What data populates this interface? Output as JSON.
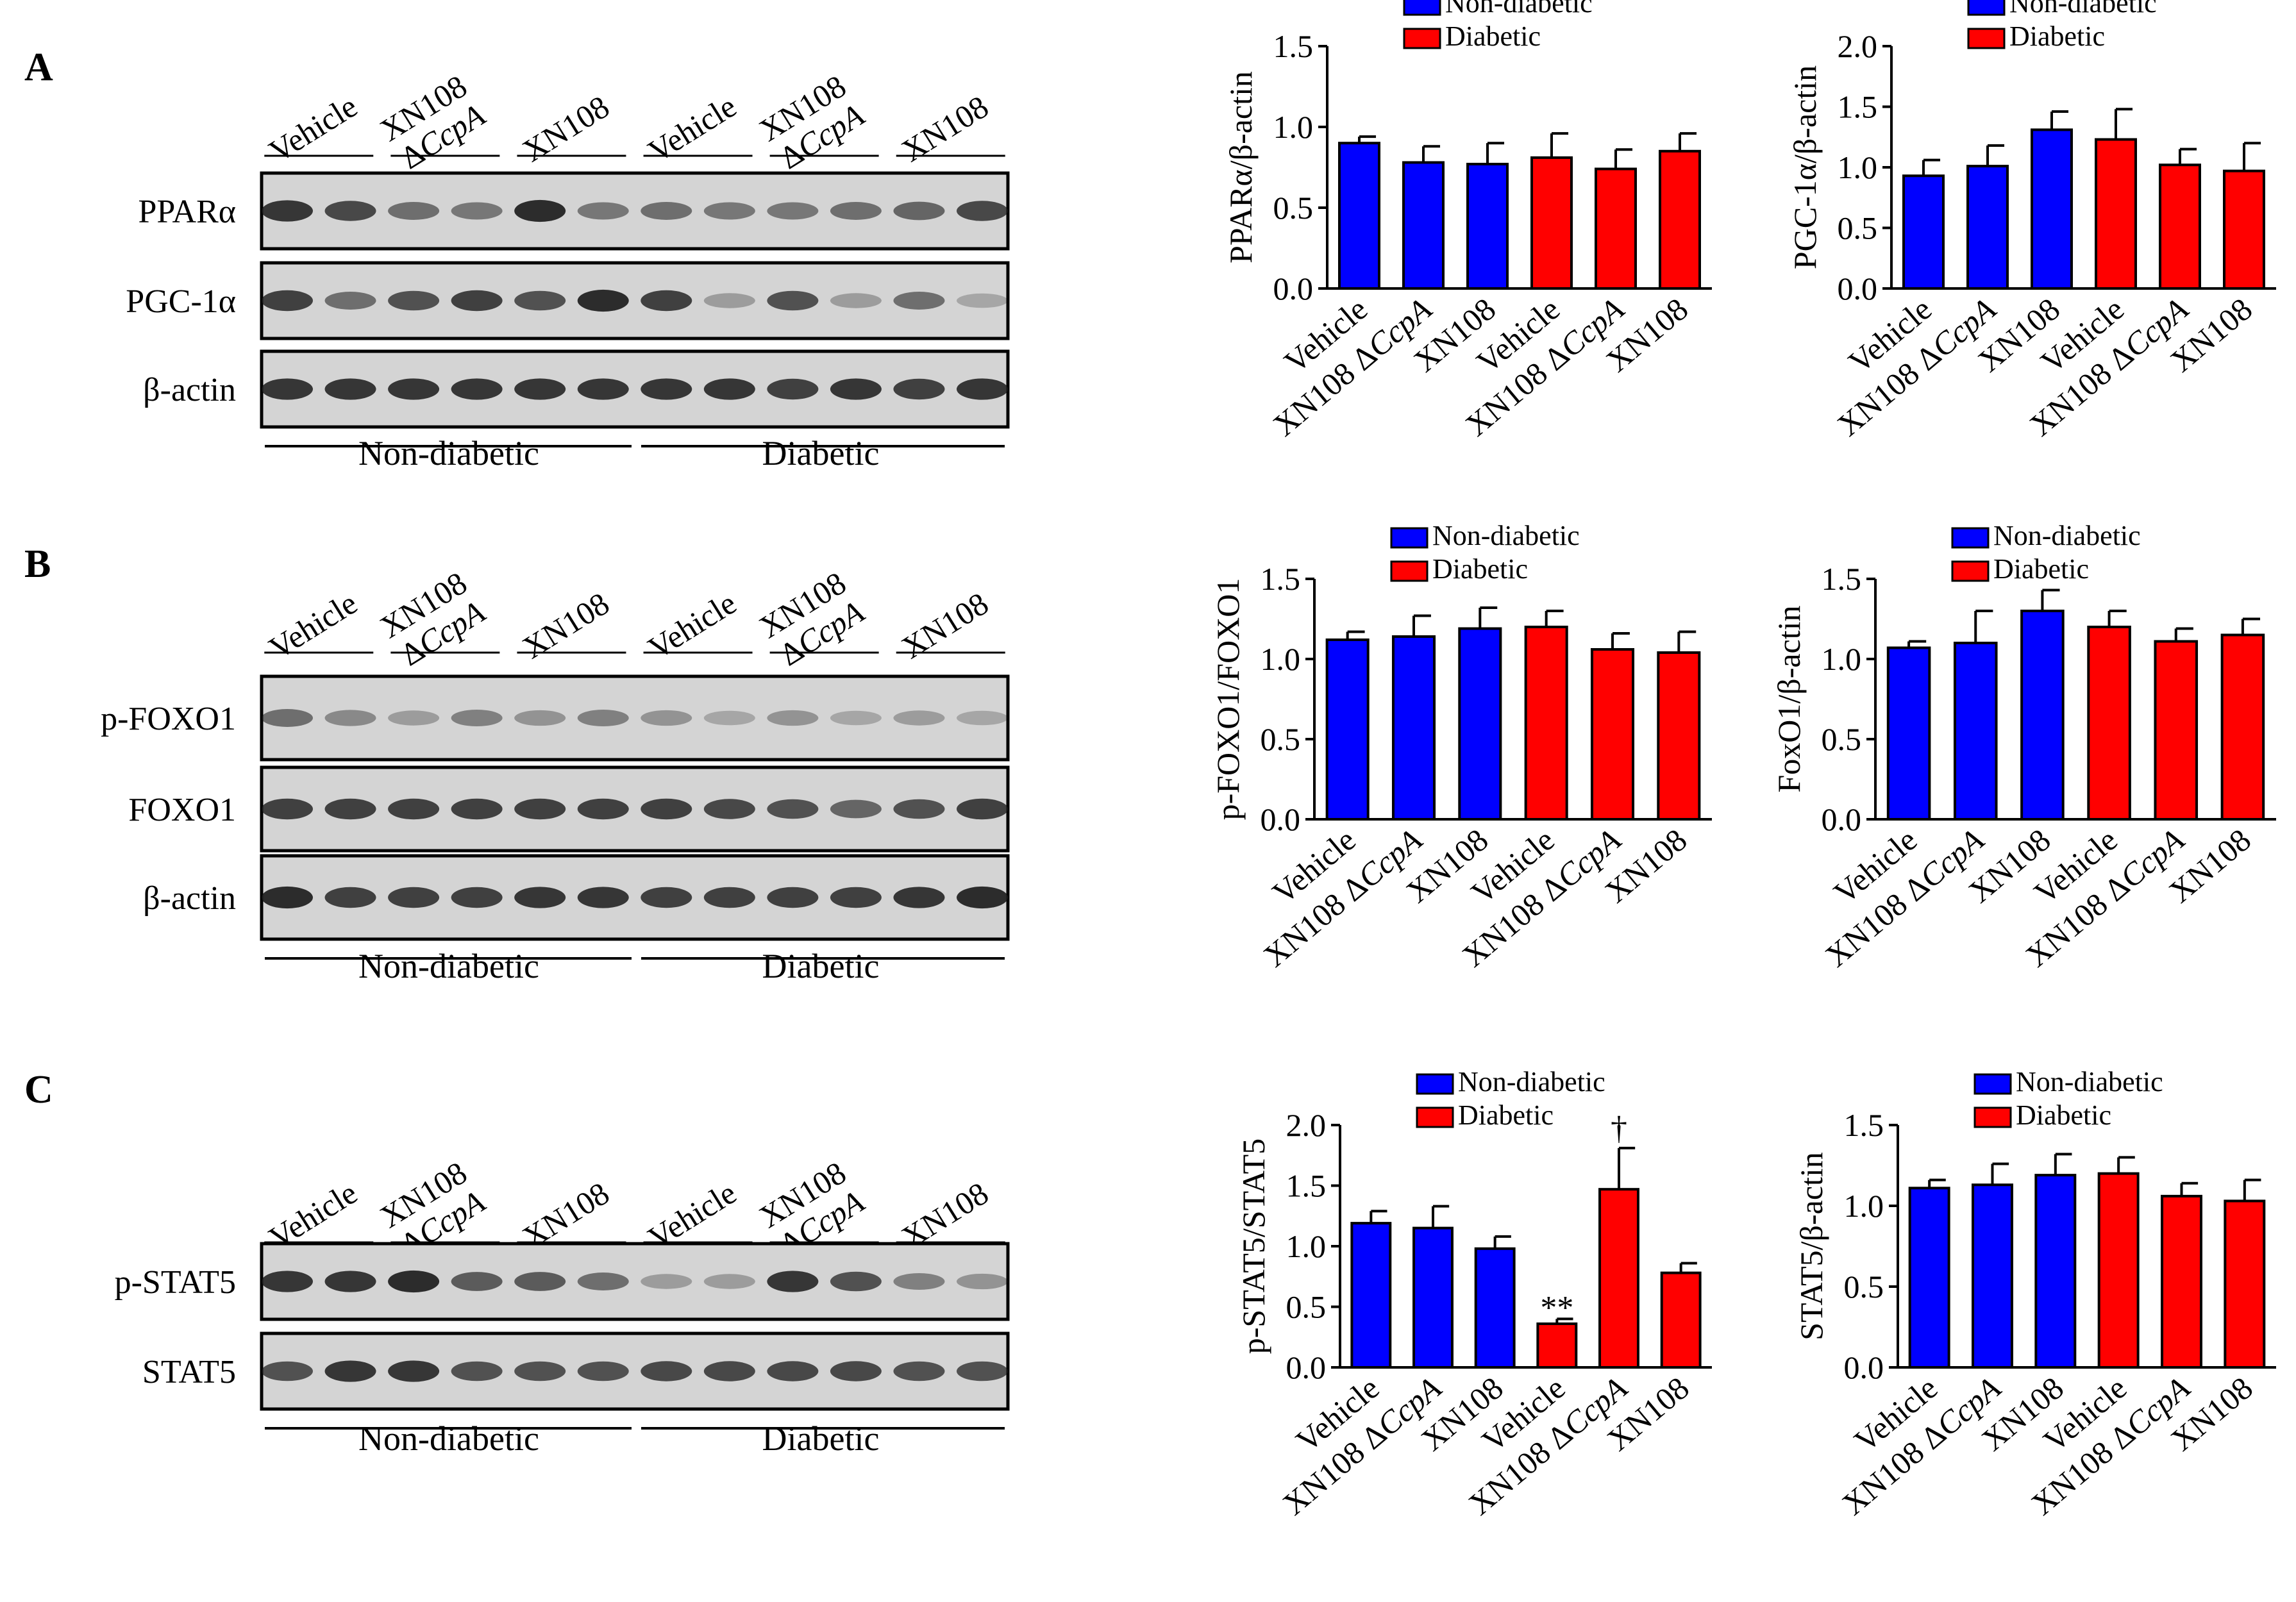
{
  "colors": {
    "non_diabetic": "#0000FF",
    "diabetic": "#FF0000",
    "ink": "#000000",
    "blot_bg": "#d4d4d4",
    "band": "#1a1a1a"
  },
  "panels": [
    {
      "letter": "A",
      "lanes": [
        {
          "line1": "Vehicle",
          "line2": ""
        },
        {
          "line1": "XN108",
          "line2": "ΔCcpA"
        },
        {
          "line1": "XN108",
          "line2": ""
        },
        {
          "line1": "Vehicle",
          "line2": ""
        },
        {
          "line1": "XN108",
          "line2": "ΔCcpA"
        },
        {
          "line1": "XN108",
          "line2": ""
        }
      ],
      "blots": [
        {
          "label": "PPARα",
          "intensity": [
            0.85,
            0.75,
            0.55,
            0.5,
            0.9,
            0.5,
            0.55,
            0.5,
            0.5,
            0.55,
            0.6,
            0.75
          ]
        },
        {
          "label": "PGC-1α",
          "intensity": [
            0.8,
            0.55,
            0.7,
            0.8,
            0.7,
            0.9,
            0.8,
            0.3,
            0.7,
            0.3,
            0.55,
            0.25
          ]
        },
        {
          "label": "β-actin",
          "intensity": [
            0.85,
            0.85,
            0.85,
            0.85,
            0.85,
            0.85,
            0.85,
            0.85,
            0.8,
            0.85,
            0.8,
            0.85
          ]
        }
      ],
      "groups": [
        "Non-diabetic",
        "Diabetic"
      ]
    },
    {
      "letter": "B",
      "lanes": [
        {
          "line1": "Vehicle",
          "line2": ""
        },
        {
          "line1": "XN108",
          "line2": "ΔCcpA"
        },
        {
          "line1": "XN108",
          "line2": ""
        },
        {
          "line1": "Vehicle",
          "line2": ""
        },
        {
          "line1": "XN108",
          "line2": "ΔCcpA"
        },
        {
          "line1": "XN108",
          "line2": ""
        }
      ],
      "blots": [
        {
          "label": "p-FOXO1",
          "intensity": [
            0.55,
            0.4,
            0.3,
            0.45,
            0.35,
            0.45,
            0.35,
            0.25,
            0.35,
            0.25,
            0.3,
            0.25
          ]
        },
        {
          "label": "FOXO1",
          "intensity": [
            0.8,
            0.8,
            0.8,
            0.8,
            0.8,
            0.8,
            0.8,
            0.75,
            0.7,
            0.6,
            0.7,
            0.8
          ]
        },
        {
          "label": "β-actin",
          "intensity": [
            0.9,
            0.8,
            0.8,
            0.8,
            0.85,
            0.85,
            0.8,
            0.8,
            0.8,
            0.8,
            0.85,
            0.9
          ]
        }
      ],
      "groups": [
        "Non-diabetic",
        "Diabetic"
      ]
    },
    {
      "letter": "C",
      "lanes": [
        {
          "line1": "Vehicle",
          "line2": ""
        },
        {
          "line1": "XN108",
          "line2": "ΔCcpA"
        },
        {
          "line1": "XN108",
          "line2": ""
        },
        {
          "line1": "Vehicle",
          "line2": ""
        },
        {
          "line1": "XN108",
          "line2": "ΔCcpA"
        },
        {
          "line1": "XN108",
          "line2": ""
        }
      ],
      "blots": [
        {
          "label": "p-STAT5",
          "intensity": [
            0.85,
            0.85,
            0.9,
            0.65,
            0.65,
            0.55,
            0.3,
            0.3,
            0.85,
            0.7,
            0.45,
            0.35
          ]
        },
        {
          "label": "STAT5",
          "intensity": [
            0.7,
            0.85,
            0.85,
            0.7,
            0.7,
            0.7,
            0.75,
            0.75,
            0.75,
            0.75,
            0.7,
            0.7
          ]
        }
      ],
      "groups": [
        "Non-diabetic",
        "Diabetic"
      ]
    }
  ],
  "chart_data": [
    {
      "type": "bar",
      "ylabel": "PPARα/β-actin",
      "ylim": [
        0,
        1.5
      ],
      "yticks": [
        "0.0",
        "0.5",
        "1.0",
        "1.5"
      ],
      "categories": [
        "Vehicle",
        "XN108 ΔCcpA",
        "XN108",
        "Vehicle",
        "XN108 ΔCcpA",
        "XN108"
      ],
      "groups": [
        "Non-diabetic",
        "Non-diabetic",
        "Non-diabetic",
        "Diabetic",
        "Diabetic",
        "Diabetic"
      ],
      "values": [
        0.9,
        0.78,
        0.77,
        0.81,
        0.74,
        0.85
      ],
      "errors": [
        0.04,
        0.1,
        0.13,
        0.15,
        0.12,
        0.11
      ],
      "annotations": [
        "",
        "",
        "",
        "",
        "",
        ""
      ],
      "legend": [
        "Non-diabetic",
        "Diabetic"
      ]
    },
    {
      "type": "bar",
      "ylabel": "PGC-1α/β-actin",
      "ylim": [
        0,
        2.0
      ],
      "yticks": [
        "0.0",
        "0.5",
        "1.0",
        "1.5",
        "2.0"
      ],
      "categories": [
        "Vehicle",
        "XN108 ΔCcpA",
        "XN108",
        "Vehicle",
        "XN108 ΔCcpA",
        "XN108"
      ],
      "groups": [
        "Non-diabetic",
        "Non-diabetic",
        "Non-diabetic",
        "Diabetic",
        "Diabetic",
        "Diabetic"
      ],
      "values": [
        0.93,
        1.01,
        1.31,
        1.23,
        1.02,
        0.97
      ],
      "errors": [
        0.13,
        0.17,
        0.15,
        0.25,
        0.13,
        0.23
      ],
      "annotations": [
        "",
        "",
        "",
        "",
        "",
        ""
      ],
      "legend": [
        "Non-diabetic",
        "Diabetic"
      ]
    },
    {
      "type": "bar",
      "ylabel": "p-FOXO1/FOXO1",
      "ylim": [
        0,
        1.5
      ],
      "yticks": [
        "0.0",
        "0.5",
        "1.0",
        "1.5"
      ],
      "categories": [
        "Vehicle",
        "XN108 ΔCcpA",
        "XN108",
        "Vehicle",
        "XN108 ΔCcpA",
        "XN108"
      ],
      "groups": [
        "Non-diabetic",
        "Non-diabetic",
        "Non-diabetic",
        "Diabetic",
        "Diabetic",
        "Diabetic"
      ],
      "values": [
        1.12,
        1.14,
        1.19,
        1.2,
        1.06,
        1.04
      ],
      "errors": [
        0.05,
        0.13,
        0.13,
        0.1,
        0.1,
        0.13
      ],
      "annotations": [
        "",
        "",
        "",
        "",
        "",
        ""
      ],
      "legend": [
        "Non-diabetic",
        "Diabetic"
      ]
    },
    {
      "type": "bar",
      "ylabel": "FoxO1/β-actin",
      "ylim": [
        0,
        1.5
      ],
      "yticks": [
        "0.0",
        "0.5",
        "1.0",
        "1.5"
      ],
      "categories": [
        "Vehicle",
        "XN108 ΔCcpA",
        "XN108",
        "Vehicle",
        "XN108 ΔCcpA",
        "XN108"
      ],
      "groups": [
        "Non-diabetic",
        "Non-diabetic",
        "Non-diabetic",
        "Diabetic",
        "Diabetic",
        "Diabetic"
      ],
      "values": [
        1.07,
        1.1,
        1.3,
        1.2,
        1.11,
        1.15
      ],
      "errors": [
        0.04,
        0.2,
        0.13,
        0.1,
        0.08,
        0.1
      ],
      "annotations": [
        "",
        "",
        "",
        "",
        "",
        ""
      ],
      "legend": [
        "Non-diabetic",
        "Diabetic"
      ]
    },
    {
      "type": "bar",
      "ylabel": "p-STAT5/STAT5",
      "ylim": [
        0,
        2.0
      ],
      "yticks": [
        "0.0",
        "0.5",
        "1.0",
        "1.5",
        "2.0"
      ],
      "categories": [
        "Vehicle",
        "XN108 ΔCcpA",
        "XN108",
        "Vehicle",
        "XN108 ΔCcpA",
        "XN108"
      ],
      "groups": [
        "Non-diabetic",
        "Non-diabetic",
        "Non-diabetic",
        "Diabetic",
        "Diabetic",
        "Diabetic"
      ],
      "values": [
        1.19,
        1.15,
        0.98,
        0.36,
        1.47,
        0.78
      ],
      "errors": [
        0.1,
        0.18,
        0.1,
        0.04,
        0.34,
        0.08
      ],
      "annotations": [
        "",
        "",
        "",
        "**",
        "†",
        ""
      ],
      "legend": [
        "Non-diabetic",
        "Diabetic"
      ]
    },
    {
      "type": "bar",
      "ylabel": "STAT5/β-actin",
      "ylim": [
        0,
        1.5
      ],
      "yticks": [
        "0.0",
        "0.5",
        "1.0",
        "1.5"
      ],
      "categories": [
        "Vehicle",
        "XN108 ΔCcpA",
        "XN108",
        "Vehicle",
        "XN108 ΔCcpA",
        "XN108"
      ],
      "groups": [
        "Non-diabetic",
        "Non-diabetic",
        "Non-diabetic",
        "Diabetic",
        "Diabetic",
        "Diabetic"
      ],
      "values": [
        1.11,
        1.13,
        1.19,
        1.2,
        1.06,
        1.03
      ],
      "errors": [
        0.05,
        0.13,
        0.13,
        0.1,
        0.08,
        0.13
      ],
      "annotations": [
        "",
        "",
        "",
        "",
        "",
        ""
      ],
      "legend": [
        "Non-diabetic",
        "Diabetic"
      ]
    }
  ]
}
